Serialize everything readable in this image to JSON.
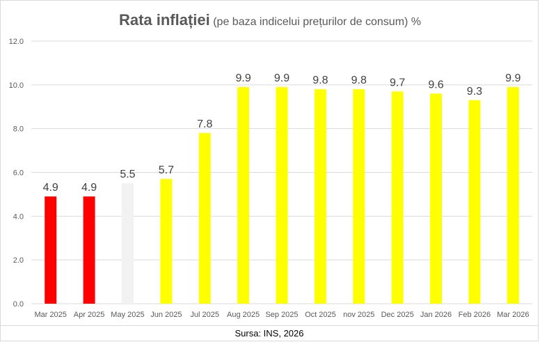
{
  "chart_data": {
    "type": "bar",
    "title": "Rata inflației",
    "subtitle": "(pe baza indicelui prețurilor de consum) %",
    "categories": [
      "Mar 2025",
      "Apr 2025",
      "May 2025",
      "Jun 2025",
      "Jul 2025",
      "Aug 2025",
      "Sep 2025",
      "Oct 2025",
      "nov 2025",
      "Dec 2025",
      "Jan 2026",
      "Feb 2026",
      "Mar 2026"
    ],
    "values": [
      4.9,
      4.9,
      5.5,
      5.7,
      7.8,
      9.9,
      9.9,
      9.8,
      9.8,
      9.7,
      9.6,
      9.3,
      9.9
    ],
    "data_labels": [
      "4.9",
      "4.9",
      "5.5",
      "5.7",
      "7.8",
      "9.9",
      "9.9",
      "9.8",
      "9.8",
      "9.7",
      "9.6",
      "9.3",
      "9.9"
    ],
    "bar_colors": [
      "#ff0000",
      "#ff0000",
      "#f2f2f2",
      "#ffff00",
      "#ffff00",
      "#ffff00",
      "#ffff00",
      "#ffff00",
      "#ffff00",
      "#ffff00",
      "#ffff00",
      "#ffff00",
      "#ffff00"
    ],
    "ylim": [
      0,
      12
    ],
    "yticks": [
      "0.0",
      "2.0",
      "4.0",
      "6.0",
      "8.0",
      "10.0",
      "12.0"
    ],
    "grid": true,
    "xlabel": "",
    "ylabel": ""
  },
  "source": "Sursa: INS, 2026",
  "colors": {
    "gridline": "#d9d9d9",
    "axis_text": "#595959",
    "label_text": "#404040"
  }
}
